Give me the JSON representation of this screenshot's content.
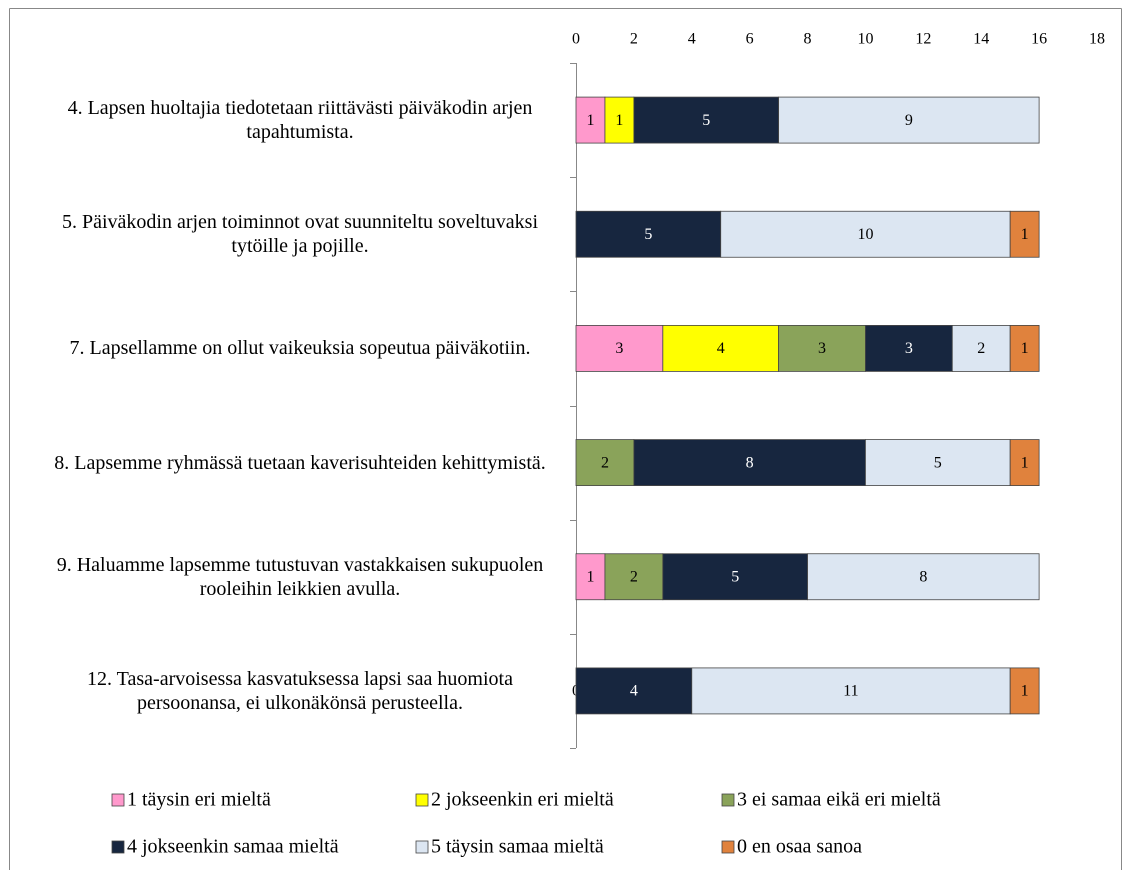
{
  "chart_data": {
    "type": "stacked-bar-horizontal",
    "categories": [
      "4. Lapsen huoltajia tiedotetaan riittävästi päiväkodin arjen tapahtumista.",
      "5. Päiväkodin arjen toiminnot ovat suunniteltu soveltuvaksi tytöille ja pojille.",
      "7. Lapsellamme on ollut vaikeuksia sopeutua päiväkotiin.",
      "8. Lapsemme ryhmässä tuetaan kaverisuhteiden kehittymistä.",
      "9. Haluamme lapsemme tutustuvan vastakkaisen sukupuolen rooleihin leikkien avulla.",
      "12. Tasa-arvoisessa kasvatuksessa lapsi saa huomiota persoonansa, ei ulkonäkönsä perusteella."
    ],
    "series": [
      {
        "name": "1 täysin eri mieltä",
        "color": "#ff99cc",
        "values": [
          1,
          null,
          3,
          null,
          1,
          0
        ]
      },
      {
        "name": "2 jokseenkin eri mieltä",
        "color": "#ffff00",
        "values": [
          1,
          null,
          4,
          null,
          null,
          null
        ]
      },
      {
        "name": "3 ei samaa eikä eri mieltä",
        "color": "#8aa35a",
        "values": [
          null,
          null,
          3,
          2,
          2,
          null
        ]
      },
      {
        "name": "4 jokseenkin samaa mieltä",
        "color": "#17263f",
        "values": [
          5,
          5,
          3,
          8,
          5,
          4
        ]
      },
      {
        "name": "5 täysin samaa mieltä",
        "color": "#dce6f2",
        "values": [
          9,
          10,
          2,
          5,
          8,
          11
        ]
      },
      {
        "name": "0 en osaa sanoa",
        "color": "#e0823d",
        "values": [
          null,
          1,
          1,
          1,
          null,
          1
        ]
      }
    ],
    "xlim": [
      0,
      18
    ],
    "xticks": [
      0,
      2,
      4,
      6,
      8,
      10,
      12,
      14,
      16,
      18
    ],
    "grid": false
  }
}
